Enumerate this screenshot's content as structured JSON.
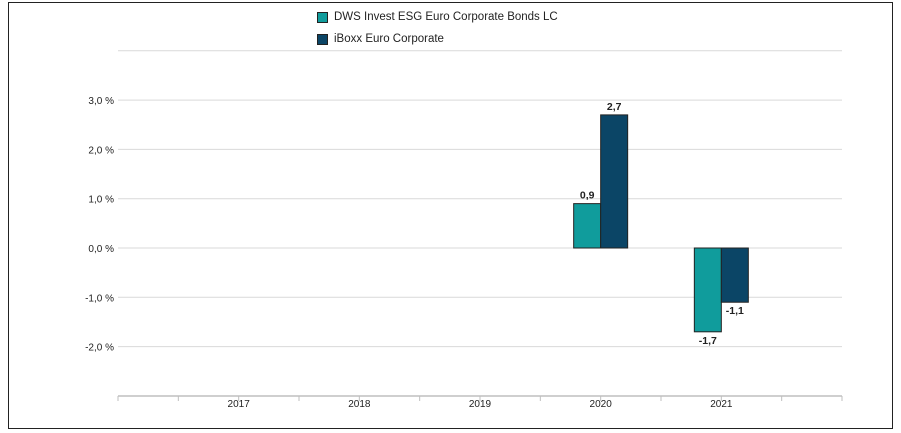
{
  "chart_data": {
    "type": "bar",
    "categories": [
      "2017",
      "2018",
      "2019",
      "2020",
      "2021"
    ],
    "series": [
      {
        "name": "DWS Invest ESG Euro Corporate Bonds  LC",
        "color": "#109c9c",
        "values": [
          null,
          null,
          null,
          0.9,
          -1.7
        ],
        "labels": [
          "",
          "",
          "",
          "0,9",
          "-1,7"
        ]
      },
      {
        "name": "iBoxx Euro Corporate",
        "color": "#0b4566",
        "values": [
          null,
          null,
          null,
          2.7,
          -1.1
        ],
        "labels": [
          "",
          "",
          "",
          "2,7",
          "-1,1"
        ]
      }
    ],
    "y_ticks": [
      3,
      2,
      1,
      0,
      -1,
      -2
    ],
    "y_tick_labels": [
      "3,0 %",
      "2,0 %",
      "1,0 %",
      "0,0 %",
      "-1,0 %",
      "-2,0 %"
    ],
    "ylim": [
      -3,
      4
    ],
    "grid": true,
    "legend_position": "top-center"
  }
}
